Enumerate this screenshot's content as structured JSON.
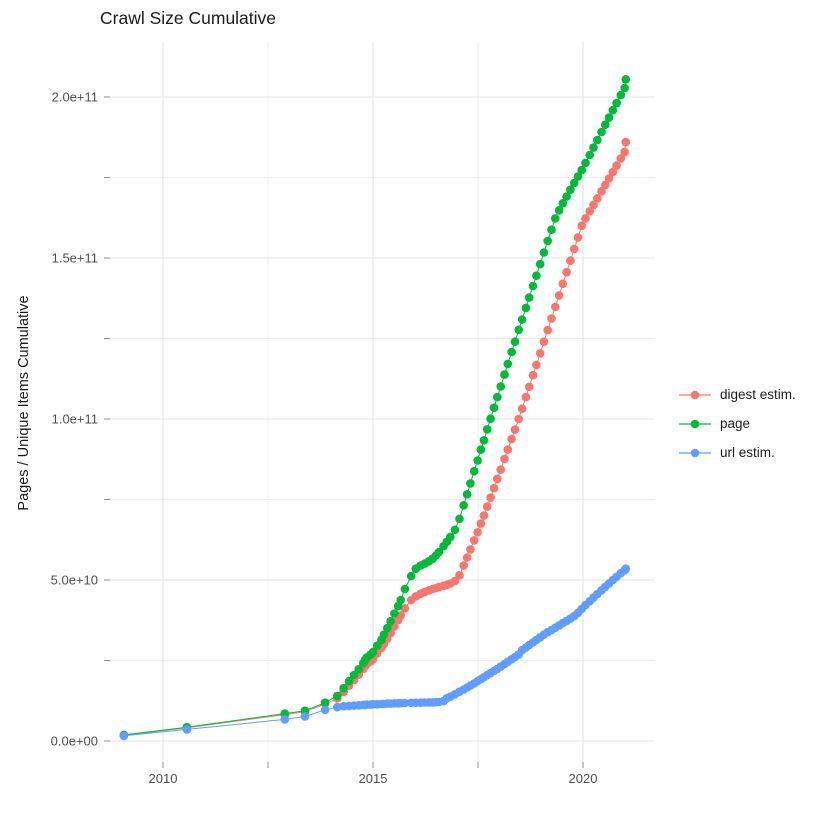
{
  "chart_data": {
    "type": "scatter",
    "title": "Crawl Size Cumulative",
    "xlabel": "",
    "ylabel": "Pages / Unique Items Cumulative",
    "grid": true,
    "legend_position": "right-center",
    "x_unit": "year",
    "y_unit": "count (values below in billions, i.e. 1e9)",
    "xlim": [
      2008.8,
      2021.7
    ],
    "ylim_billions": [
      -7,
      217
    ],
    "x_tick_values": [
      2010,
      2015,
      2020
    ],
    "x_tick_labels": [
      "2010",
      "2015",
      "2020"
    ],
    "x_minor_ticks": [
      2012.5,
      2017.5
    ],
    "y_tick_values_billions": [
      0,
      50,
      100,
      150,
      200
    ],
    "y_tick_labels": [
      "0.0e+00",
      "5.0e+10",
      "1.0e+11",
      "1.5e+11",
      "2.0e+11"
    ],
    "y_minor_ticks_billions": [
      25,
      75,
      125,
      175
    ],
    "colors": {
      "grid_major": "#E3E3E3",
      "grid_minor": "#EDEDED",
      "tick": "#8C8C8C",
      "tick_label": "#4d4d4d",
      "text": "#1a1a1a"
    },
    "series": [
      {
        "name": "digest estim.",
        "color": "#F8766D",
        "points": [
          [
            2009.07,
            1.8
          ],
          [
            2010.57,
            4.1
          ],
          [
            2012.9,
            8.2
          ],
          [
            2013.38,
            9.1
          ],
          [
            2013.86,
            11.5
          ],
          [
            2014.15,
            13.2
          ],
          [
            2014.3,
            15.2
          ],
          [
            2014.43,
            17.2
          ],
          [
            2014.55,
            18.9
          ],
          [
            2014.66,
            20.6
          ],
          [
            2014.77,
            22.4
          ],
          [
            2014.81,
            23.2
          ],
          [
            2014.85,
            23.9
          ],
          [
            2014.94,
            24.7
          ],
          [
            2015.0,
            25.4
          ],
          [
            2015.1,
            27.2
          ],
          [
            2015.2,
            28.9
          ],
          [
            2015.26,
            30.1
          ],
          [
            2015.34,
            31.8
          ],
          [
            2015.42,
            33.5
          ],
          [
            2015.51,
            35.6
          ],
          [
            2015.6,
            37.6
          ],
          [
            2015.66,
            39.0
          ],
          [
            2015.76,
            41.2
          ],
          [
            2015.91,
            43.8
          ],
          [
            2016.02,
            44.9
          ],
          [
            2016.13,
            45.7
          ],
          [
            2016.23,
            46.3
          ],
          [
            2016.33,
            46.8
          ],
          [
            2016.42,
            47.2
          ],
          [
            2016.5,
            47.5
          ],
          [
            2016.57,
            47.8
          ],
          [
            2016.68,
            48.2
          ],
          [
            2016.76,
            48.5
          ],
          [
            2016.84,
            48.9
          ],
          [
            2016.95,
            49.7
          ],
          [
            2017.06,
            51.5
          ],
          [
            2017.16,
            54.5
          ],
          [
            2017.24,
            57.0
          ],
          [
            2017.32,
            59.5
          ],
          [
            2017.41,
            62.3
          ],
          [
            2017.49,
            64.8
          ],
          [
            2017.57,
            67.5
          ],
          [
            2017.64,
            70.0
          ],
          [
            2017.72,
            72.8
          ],
          [
            2017.8,
            75.6
          ],
          [
            2017.88,
            78.5
          ],
          [
            2017.96,
            81.4
          ],
          [
            2018.04,
            84.3
          ],
          [
            2018.13,
            87.6
          ],
          [
            2018.21,
            90.5
          ],
          [
            2018.3,
            93.8
          ],
          [
            2018.38,
            96.7
          ],
          [
            2018.47,
            100.0
          ],
          [
            2018.55,
            103.2
          ],
          [
            2018.64,
            106.8
          ],
          [
            2018.72,
            110.0
          ],
          [
            2018.81,
            113.6
          ],
          [
            2018.89,
            116.8
          ],
          [
            2018.98,
            120.4
          ],
          [
            2019.07,
            124.0
          ],
          [
            2019.16,
            127.6
          ],
          [
            2019.25,
            131.2
          ],
          [
            2019.34,
            134.8
          ],
          [
            2019.43,
            138.4
          ],
          [
            2019.52,
            142.0
          ],
          [
            2019.61,
            145.6
          ],
          [
            2019.7,
            149.2
          ],
          [
            2019.79,
            152.8
          ],
          [
            2019.88,
            156.4
          ],
          [
            2019.97,
            160.0
          ],
          [
            2020.06,
            162.3
          ],
          [
            2020.16,
            164.5
          ],
          [
            2020.25,
            166.5
          ],
          [
            2020.34,
            168.5
          ],
          [
            2020.44,
            170.7
          ],
          [
            2020.53,
            172.7
          ],
          [
            2020.62,
            174.7
          ],
          [
            2020.71,
            176.7
          ],
          [
            2020.8,
            178.7
          ],
          [
            2020.9,
            180.9
          ],
          [
            2020.99,
            182.9
          ],
          [
            2021.02,
            186.0
          ]
        ]
      },
      {
        "name": "page",
        "color": "#00BA38",
        "points": [
          [
            2009.07,
            1.9
          ],
          [
            2010.57,
            4.3
          ],
          [
            2012.9,
            8.5
          ],
          [
            2013.38,
            9.4
          ],
          [
            2013.86,
            11.9
          ],
          [
            2014.15,
            14.0
          ],
          [
            2014.3,
            16.4
          ],
          [
            2014.43,
            18.6
          ],
          [
            2014.55,
            20.5
          ],
          [
            2014.66,
            22.3
          ],
          [
            2014.77,
            24.2
          ],
          [
            2014.81,
            25.1
          ],
          [
            2014.85,
            25.9
          ],
          [
            2014.94,
            26.8
          ],
          [
            2015.0,
            27.6
          ],
          [
            2015.1,
            29.6
          ],
          [
            2015.2,
            31.4
          ],
          [
            2015.26,
            33.0
          ],
          [
            2015.34,
            35.1
          ],
          [
            2015.42,
            37.2
          ],
          [
            2015.51,
            39.6
          ],
          [
            2015.6,
            41.9
          ],
          [
            2015.66,
            43.8
          ],
          [
            2015.76,
            47.2
          ],
          [
            2015.91,
            51.2
          ],
          [
            2016.02,
            53.5
          ],
          [
            2016.13,
            54.5
          ],
          [
            2016.23,
            55.1
          ],
          [
            2016.33,
            55.8
          ],
          [
            2016.42,
            56.6
          ],
          [
            2016.5,
            57.6
          ],
          [
            2016.57,
            58.7
          ],
          [
            2016.68,
            60.5
          ],
          [
            2016.76,
            61.9
          ],
          [
            2016.84,
            63.4
          ],
          [
            2016.95,
            65.6
          ],
          [
            2017.06,
            69.0
          ],
          [
            2017.16,
            73.2
          ],
          [
            2017.24,
            76.6
          ],
          [
            2017.32,
            80.0
          ],
          [
            2017.41,
            83.8
          ],
          [
            2017.49,
            87.1
          ],
          [
            2017.57,
            90.5
          ],
          [
            2017.64,
            93.4
          ],
          [
            2017.72,
            96.8
          ],
          [
            2017.8,
            100.1
          ],
          [
            2017.88,
            103.5
          ],
          [
            2017.96,
            106.8
          ],
          [
            2018.04,
            110.1
          ],
          [
            2018.13,
            113.8
          ],
          [
            2018.21,
            117.1
          ],
          [
            2018.3,
            120.8
          ],
          [
            2018.38,
            124.0
          ],
          [
            2018.47,
            127.7
          ],
          [
            2018.55,
            130.9
          ],
          [
            2018.64,
            134.5
          ],
          [
            2018.72,
            137.7
          ],
          [
            2018.81,
            141.3
          ],
          [
            2018.89,
            144.5
          ],
          [
            2018.98,
            148.1
          ],
          [
            2019.07,
            151.7
          ],
          [
            2019.16,
            155.3
          ],
          [
            2019.25,
            158.8
          ],
          [
            2019.34,
            162.3
          ],
          [
            2019.43,
            164.8
          ],
          [
            2019.52,
            167.0
          ],
          [
            2019.61,
            169.1
          ],
          [
            2019.7,
            171.2
          ],
          [
            2019.79,
            173.3
          ],
          [
            2019.88,
            175.3
          ],
          [
            2019.97,
            177.3
          ],
          [
            2020.06,
            179.5
          ],
          [
            2020.16,
            182.0
          ],
          [
            2020.25,
            184.3
          ],
          [
            2020.34,
            186.6
          ],
          [
            2020.44,
            189.1
          ],
          [
            2020.53,
            191.4
          ],
          [
            2020.62,
            193.6
          ],
          [
            2020.71,
            195.9
          ],
          [
            2020.8,
            198.1
          ],
          [
            2020.9,
            200.6
          ],
          [
            2020.99,
            202.8
          ],
          [
            2021.02,
            205.5
          ]
        ]
      },
      {
        "name": "url estim.",
        "color": "#619CFF",
        "points": [
          [
            2009.07,
            1.6
          ],
          [
            2010.57,
            3.6
          ],
          [
            2012.9,
            6.7
          ],
          [
            2013.38,
            7.6
          ],
          [
            2013.86,
            9.7
          ],
          [
            2014.15,
            10.5
          ],
          [
            2014.3,
            10.8
          ],
          [
            2014.43,
            10.9
          ],
          [
            2014.55,
            11.0
          ],
          [
            2014.66,
            11.1
          ],
          [
            2014.77,
            11.2
          ],
          [
            2014.81,
            11.2
          ],
          [
            2014.85,
            11.3
          ],
          [
            2014.94,
            11.3
          ],
          [
            2015.0,
            11.4
          ],
          [
            2015.1,
            11.4
          ],
          [
            2015.2,
            11.5
          ],
          [
            2015.26,
            11.5
          ],
          [
            2015.34,
            11.6
          ],
          [
            2015.42,
            11.6
          ],
          [
            2015.51,
            11.7
          ],
          [
            2015.6,
            11.7
          ],
          [
            2015.66,
            11.75
          ],
          [
            2015.76,
            11.8
          ],
          [
            2015.91,
            11.85
          ],
          [
            2016.02,
            11.9
          ],
          [
            2016.13,
            11.9
          ],
          [
            2016.23,
            11.95
          ],
          [
            2016.33,
            12.0
          ],
          [
            2016.42,
            12.0
          ],
          [
            2016.5,
            12.05
          ],
          [
            2016.57,
            12.1
          ],
          [
            2016.68,
            12.4
          ],
          [
            2016.76,
            13.3
          ],
          [
            2016.84,
            13.8
          ],
          [
            2016.95,
            14.5
          ],
          [
            2017.06,
            15.3
          ],
          [
            2017.16,
            16.0
          ],
          [
            2017.24,
            16.6
          ],
          [
            2017.32,
            17.2
          ],
          [
            2017.41,
            17.9
          ],
          [
            2017.49,
            18.6
          ],
          [
            2017.57,
            19.2
          ],
          [
            2017.64,
            19.8
          ],
          [
            2017.72,
            20.5
          ],
          [
            2017.8,
            21.1
          ],
          [
            2017.88,
            21.8
          ],
          [
            2017.96,
            22.4
          ],
          [
            2018.04,
            23.1
          ],
          [
            2018.13,
            23.9
          ],
          [
            2018.21,
            24.6
          ],
          [
            2018.3,
            25.4
          ],
          [
            2018.38,
            26.1
          ],
          [
            2018.47,
            26.9
          ],
          [
            2018.55,
            28.2
          ],
          [
            2018.64,
            29.0
          ],
          [
            2018.72,
            29.8
          ],
          [
            2018.81,
            30.6
          ],
          [
            2018.89,
            31.4
          ],
          [
            2018.98,
            32.2
          ],
          [
            2019.07,
            33.0
          ],
          [
            2019.16,
            33.8
          ],
          [
            2019.25,
            34.5
          ],
          [
            2019.34,
            35.2
          ],
          [
            2019.43,
            35.9
          ],
          [
            2019.52,
            36.6
          ],
          [
            2019.61,
            37.3
          ],
          [
            2019.7,
            38.0
          ],
          [
            2019.79,
            38.8
          ],
          [
            2019.88,
            39.8
          ],
          [
            2019.97,
            41.0
          ],
          [
            2020.06,
            42.2
          ],
          [
            2020.16,
            43.4
          ],
          [
            2020.25,
            44.5
          ],
          [
            2020.34,
            45.6
          ],
          [
            2020.44,
            46.8
          ],
          [
            2020.53,
            47.9
          ],
          [
            2020.62,
            48.9
          ],
          [
            2020.71,
            50.0
          ],
          [
            2020.8,
            51.0
          ],
          [
            2020.9,
            52.1
          ],
          [
            2020.99,
            53.0
          ],
          [
            2021.02,
            53.5
          ]
        ]
      }
    ]
  }
}
